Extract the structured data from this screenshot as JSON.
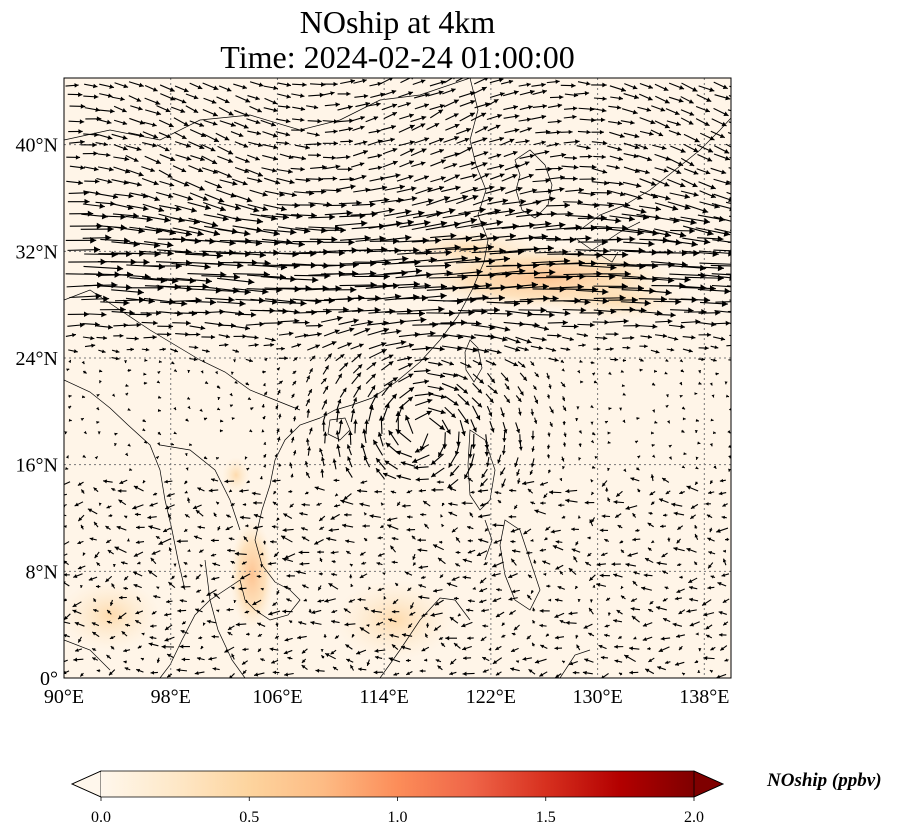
{
  "title": {
    "line1": "NOship at 4km",
    "line2": "Time: 2024-02-24 01:00:00"
  },
  "map": {
    "variable": "NOship",
    "level": "4km",
    "extent": {
      "lon": [
        90,
        140
      ],
      "lat": [
        0,
        45
      ]
    },
    "lon_ticks": [
      90,
      98,
      106,
      114,
      122,
      130,
      138
    ],
    "lon_labels": [
      "90°E",
      "98°E",
      "106°E",
      "114°E",
      "122°E",
      "130°E",
      "138°E"
    ],
    "lat_ticks": [
      0,
      8,
      16,
      24,
      32,
      40
    ],
    "lat_labels": [
      "0°",
      "8°N",
      "16°N",
      "24°N",
      "32°N",
      "40°N"
    ],
    "gridlines": true,
    "features": [
      "coastlines",
      "wind-vectors",
      "concentration-shading"
    ]
  },
  "colorbar": {
    "label": "NOship (ppbv)",
    "min": 0.0,
    "max": 2.0,
    "ticks": [
      0.0,
      0.5,
      1.0,
      1.5,
      2.0
    ],
    "tick_labels": [
      "0.0",
      "0.5",
      "1.0",
      "1.5",
      "2.0"
    ],
    "colormap": "OrRd",
    "extend": "both",
    "colors": [
      "#fff7ec",
      "#fee8c8",
      "#fdd49e",
      "#fdbb84",
      "#fc8d59",
      "#ef6548",
      "#d7301f",
      "#b30000",
      "#7f0000"
    ]
  }
}
